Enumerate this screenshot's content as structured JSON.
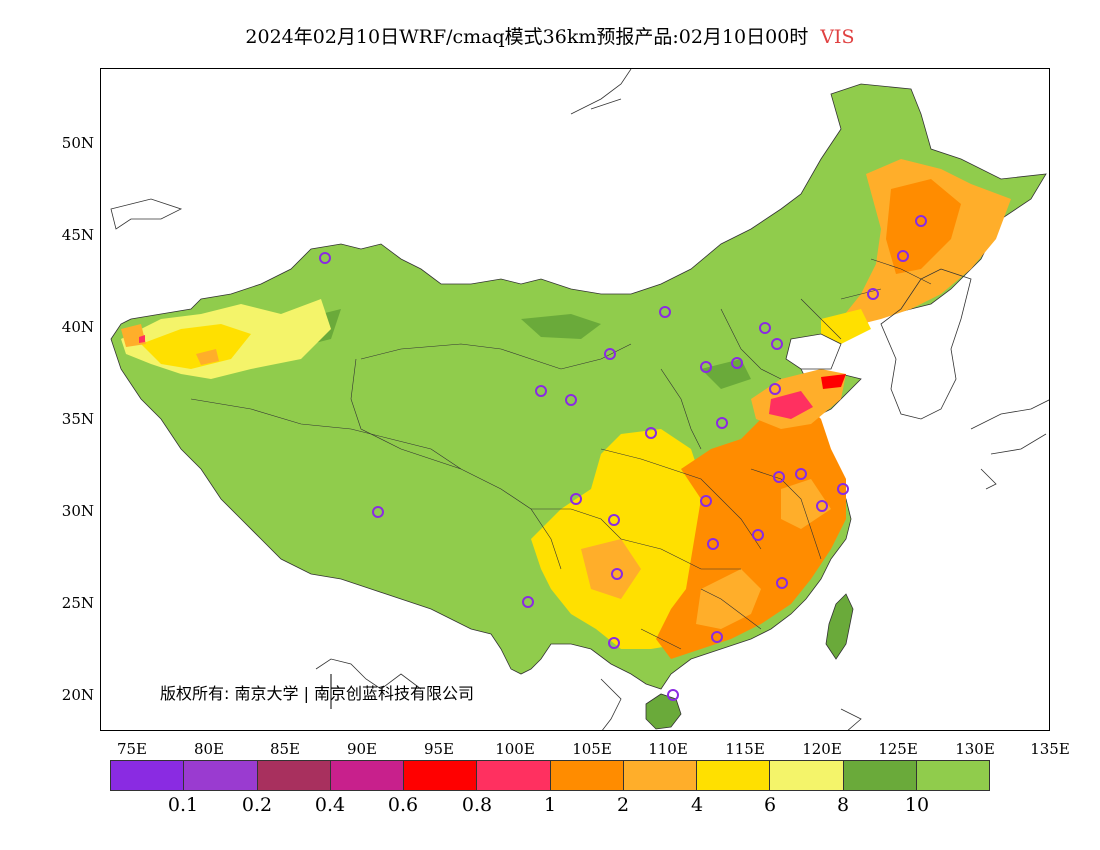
{
  "title": {
    "main": "2024年02月10日WRF/cmaq模式36km预报产品:02月10日00时",
    "variable": "VIS"
  },
  "axes": {
    "lat_labels": [
      "50N",
      "45N",
      "40N",
      "35N",
      "30N",
      "25N",
      "20N"
    ],
    "lon_labels": [
      "75E",
      "80E",
      "85E",
      "90E",
      "95E",
      "100E",
      "105E",
      "110E",
      "115E",
      "120E",
      "125E",
      "130E",
      "135E"
    ]
  },
  "copyright": "版权所有: 南京大学 | 南京创蓝科技有限公司",
  "legend": {
    "colors": [
      "#8a2be2",
      "#9a3bd0",
      "#a8305e",
      "#c8208c",
      "#ff0000",
      "#ff3060",
      "#ff8c00",
      "#ffae2a",
      "#ffe000",
      "#f4f46a",
      "#6aaa3a",
      "#90cc4c"
    ],
    "labels": [
      "0.1",
      "0.2",
      "0.4",
      "0.6",
      "0.8",
      "1",
      "2",
      "4",
      "6",
      "8",
      "10"
    ]
  },
  "map": {
    "ocean_color": "#ffffff",
    "land_fill": "#90cc4c",
    "station_marker_color": "#8a2be2"
  }
}
